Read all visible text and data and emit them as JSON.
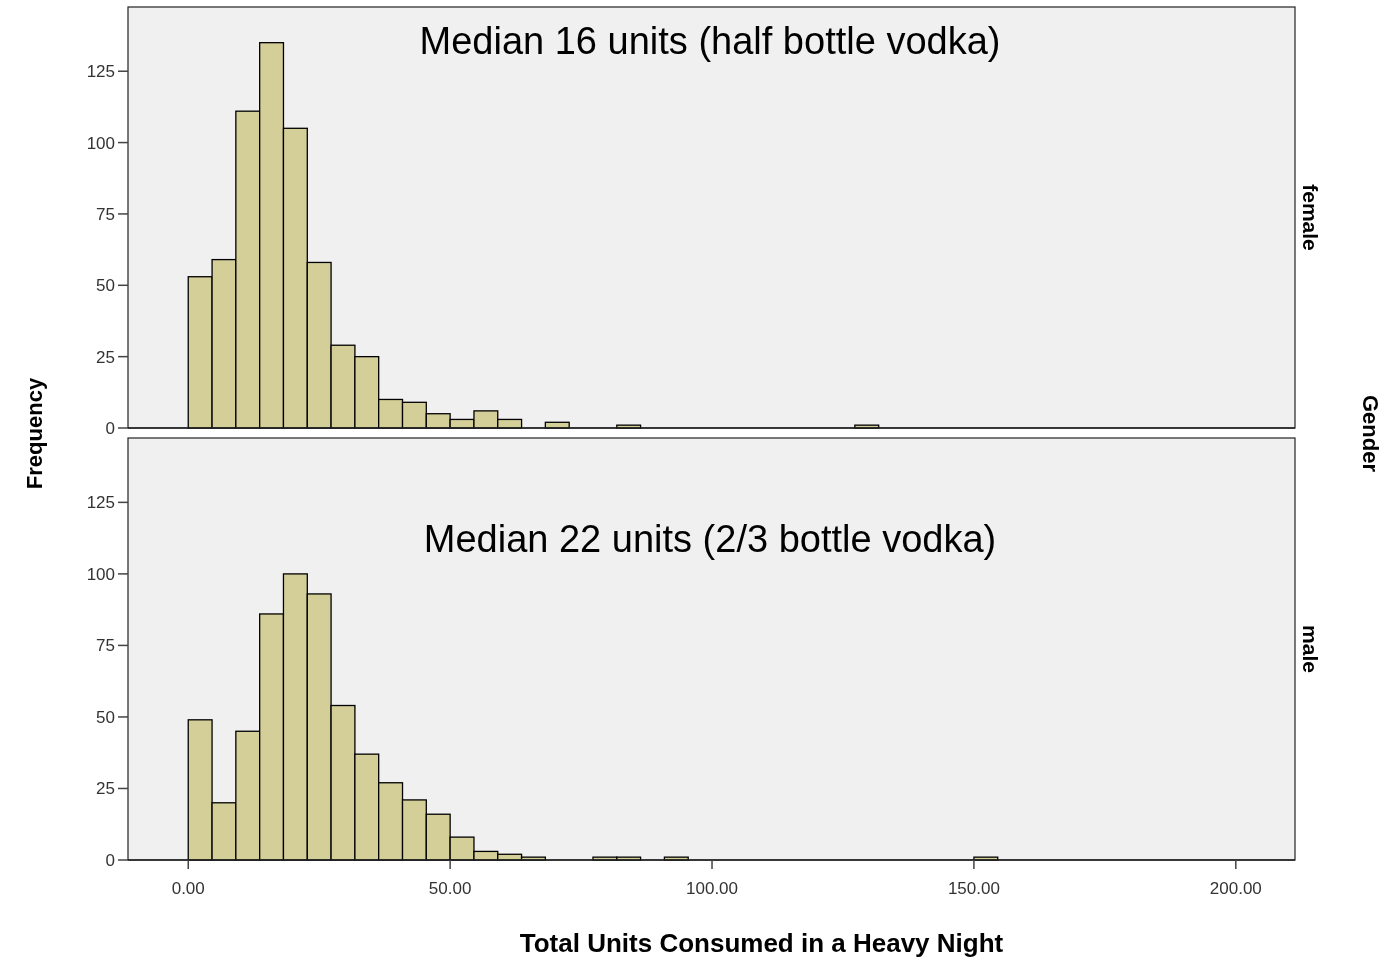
{
  "chart_data": [
    {
      "type": "histogram",
      "title": "female",
      "ylabel": "Frequency",
      "y2label": "Gender",
      "annotations": [
        "Median 16 units (half bottle vodka)"
      ],
      "color": "#d4cf98",
      "tick_labels": "y",
      "grid": false,
      "bins": [
        0,
        4.55,
        9.09,
        13.64,
        18.18,
        22.73,
        27.27,
        31.82,
        36.36,
        40.91,
        45.45,
        50,
        54.55,
        59.09,
        63.64,
        68.18,
        72.73,
        77.27,
        81.82,
        86.36,
        90.91,
        95.45,
        100,
        104.55,
        109.09,
        113.64,
        118.18,
        122.73,
        127.27,
        131.82,
        136.36,
        140.91,
        145.45,
        150,
        154.55
      ],
      "values": [
        53,
        59,
        111,
        135,
        105,
        58,
        29,
        25,
        10,
        9,
        5,
        3,
        6,
        3,
        0,
        2,
        0,
        0,
        1,
        0,
        0,
        0,
        0,
        0,
        0,
        0,
        0,
        0,
        1,
        0,
        0,
        0,
        0,
        0
      ],
      "xlim": [
        -11.5,
        211.3
      ],
      "ylim": [
        0,
        147.5
      ],
      "yticks": [
        0,
        25,
        50,
        75,
        100,
        125
      ]
    },
    {
      "type": "histogram",
      "title": "male",
      "xlabel": "Total Units Consumed in a Heavy Night",
      "annotations": [
        "Median 22 units (2/3 bottle vodka)"
      ],
      "color": "#d4cf98",
      "grid": false,
      "bins": [
        0,
        4.55,
        9.09,
        13.64,
        18.18,
        22.73,
        27.27,
        31.82,
        36.36,
        40.91,
        45.45,
        50,
        54.55,
        59.09,
        63.64,
        68.18,
        72.73,
        77.27,
        81.82,
        86.36,
        90.91,
        95.45,
        100,
        104.55,
        109.09,
        113.64,
        118.18,
        122.73,
        127.27,
        131.82,
        136.36,
        140.91,
        145.45,
        150,
        154.55
      ],
      "values": [
        49,
        20,
        45,
        86,
        100,
        93,
        54,
        37,
        27,
        21,
        16,
        8,
        3,
        2,
        1,
        0,
        0,
        1,
        1,
        0,
        1,
        0,
        0,
        0,
        0,
        0,
        0,
        0,
        0,
        0,
        0,
        0,
        0,
        1
      ],
      "xlim": [
        -11.5,
        211.3
      ],
      "xticks": [
        {
          "value": 0,
          "label": "0.00"
        },
        {
          "value": 50,
          "label": "50.00"
        },
        {
          "value": 100,
          "label": "100.00"
        },
        {
          "value": 150,
          "label": "150.00"
        },
        {
          "value": 200,
          "label": "200.00"
        }
      ],
      "ylim": [
        0,
        147.5
      ],
      "yticks": [
        0,
        25,
        50,
        75,
        100,
        125
      ]
    }
  ]
}
